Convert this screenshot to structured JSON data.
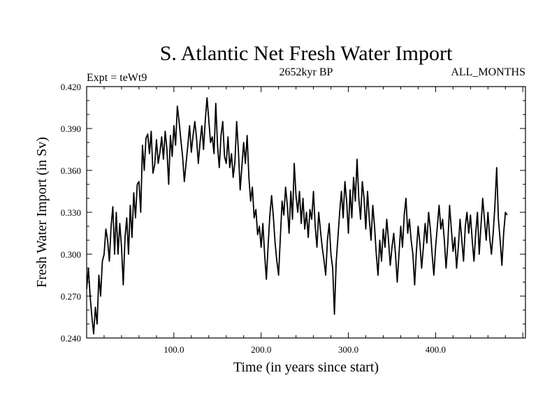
{
  "chart_data": {
    "type": "line",
    "title": "S. Atlantic Net Fresh Water Import",
    "subtitle_left": "Expt = teWt9",
    "subtitle_center": "2652kyr BP",
    "subtitle_right": "ALL_MONTHS",
    "xlabel": "Time (in years since start)",
    "ylabel": "Fresh Water Import (in Sv)",
    "xlim": [
      0,
      503
    ],
    "ylim": [
      0.24,
      0.42
    ],
    "x_ticks": [
      100,
      200,
      300,
      400
    ],
    "x_tick_labels": [
      "100.0",
      "200.0",
      "300.0",
      "400.0"
    ],
    "y_ticks": [
      0.24,
      0.27,
      0.3,
      0.33,
      0.36,
      0.39,
      0.42
    ],
    "y_tick_labels": [
      "0.240",
      "0.270",
      "0.300",
      "0.330",
      "0.360",
      "0.390",
      "0.420"
    ],
    "grid": false,
    "series": [
      {
        "name": "Fresh Water Import",
        "x_start": 0,
        "x_step": 2,
        "values": [
          0.275,
          0.29,
          0.27,
          0.255,
          0.243,
          0.262,
          0.25,
          0.285,
          0.27,
          0.295,
          0.3,
          0.318,
          0.31,
          0.295,
          0.32,
          0.334,
          0.3,
          0.33,
          0.3,
          0.322,
          0.305,
          0.278,
          0.312,
          0.326,
          0.3,
          0.335,
          0.312,
          0.344,
          0.326,
          0.35,
          0.352,
          0.33,
          0.378,
          0.36,
          0.383,
          0.386,
          0.372,
          0.388,
          0.358,
          0.364,
          0.382,
          0.365,
          0.373,
          0.384,
          0.368,
          0.388,
          0.375,
          0.35,
          0.385,
          0.37,
          0.392,
          0.378,
          0.406,
          0.395,
          0.382,
          0.37,
          0.352,
          0.365,
          0.378,
          0.392,
          0.373,
          0.385,
          0.395,
          0.383,
          0.365,
          0.38,
          0.392,
          0.375,
          0.396,
          0.412,
          0.396,
          0.38,
          0.384,
          0.372,
          0.408,
          0.378,
          0.362,
          0.385,
          0.395,
          0.37,
          0.365,
          0.384,
          0.362,
          0.372,
          0.355,
          0.366,
          0.395,
          0.374,
          0.346,
          0.363,
          0.38,
          0.365,
          0.385,
          0.355,
          0.338,
          0.348,
          0.326,
          0.332,
          0.314,
          0.32,
          0.305,
          0.322,
          0.3,
          0.282,
          0.306,
          0.328,
          0.342,
          0.327,
          0.308,
          0.295,
          0.285,
          0.312,
          0.338,
          0.328,
          0.348,
          0.335,
          0.315,
          0.345,
          0.325,
          0.365,
          0.342,
          0.33,
          0.345,
          0.322,
          0.34,
          0.318,
          0.33,
          0.312,
          0.332,
          0.325,
          0.345,
          0.32,
          0.305,
          0.33,
          0.317,
          0.305,
          0.296,
          0.285,
          0.31,
          0.322,
          0.3,
          0.29,
          0.257,
          0.294,
          0.312,
          0.33,
          0.345,
          0.326,
          0.352,
          0.338,
          0.315,
          0.346,
          0.326,
          0.355,
          0.338,
          0.368,
          0.34,
          0.325,
          0.352,
          0.34,
          0.318,
          0.345,
          0.325,
          0.31,
          0.335,
          0.32,
          0.3,
          0.285,
          0.31,
          0.295,
          0.318,
          0.305,
          0.325,
          0.31,
          0.292,
          0.305,
          0.315,
          0.3,
          0.28,
          0.3,
          0.32,
          0.305,
          0.328,
          0.34,
          0.315,
          0.325,
          0.31,
          0.3,
          0.278,
          0.302,
          0.32,
          0.308,
          0.29,
          0.305,
          0.322,
          0.308,
          0.33,
          0.318,
          0.3,
          0.285,
          0.305,
          0.32,
          0.335,
          0.318,
          0.325,
          0.31,
          0.29,
          0.308,
          0.335,
          0.318,
          0.302,
          0.312,
          0.29,
          0.305,
          0.325,
          0.31,
          0.295,
          0.32,
          0.33,
          0.315,
          0.328,
          0.31,
          0.295,
          0.315,
          0.33,
          0.3,
          0.32,
          0.34,
          0.325,
          0.31,
          0.33,
          0.312,
          0.3,
          0.315,
          0.335,
          0.362,
          0.325,
          0.31,
          0.292,
          0.315,
          0.33,
          0.328
        ]
      }
    ]
  }
}
